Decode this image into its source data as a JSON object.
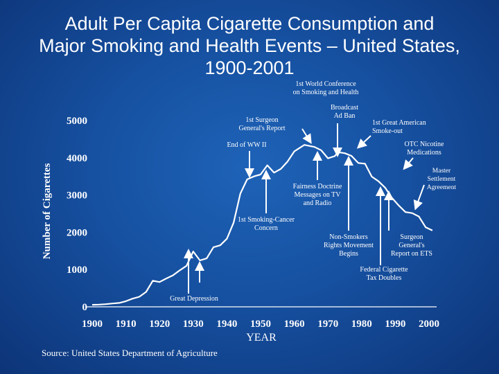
{
  "title_lines": [
    "Adult Per Capita Cigarette Consumption and",
    "Major Smoking and Health Events – United States,",
    "1900-2001"
  ],
  "source": "Source: United States Department of Agriculture",
  "colors": {
    "background": "#1650a0",
    "text": "#ffffff",
    "curve": "#ffffff",
    "arrow": "#ffffff"
  },
  "chart_data": {
    "type": "line",
    "title": "Adult Per Capita Cigarette Consumption and Major Smoking and Health Events – United States, 1900-2001",
    "xlabel": "YEAR",
    "ylabel": "Number of Cigarettes",
    "xlim": [
      1900,
      2000
    ],
    "ylim": [
      0,
      5000
    ],
    "x_ticks": [
      1900,
      1910,
      1920,
      1930,
      1940,
      1950,
      1960,
      1970,
      1980,
      1990,
      2000
    ],
    "y_ticks": [
      0,
      1000,
      2000,
      3000,
      4000,
      5000
    ],
    "grid": false,
    "series": [
      {
        "points": [
          [
            1900,
            54
          ],
          [
            1902,
            60
          ],
          [
            1904,
            70
          ],
          [
            1906,
            90
          ],
          [
            1908,
            105
          ],
          [
            1910,
            151
          ],
          [
            1912,
            220
          ],
          [
            1914,
            270
          ],
          [
            1916,
            400
          ],
          [
            1918,
            700
          ],
          [
            1920,
            665
          ],
          [
            1922,
            760
          ],
          [
            1924,
            845
          ],
          [
            1926,
            980
          ],
          [
            1928,
            1100
          ],
          [
            1930,
            1485
          ],
          [
            1932,
            1245
          ],
          [
            1934,
            1300
          ],
          [
            1936,
            1600
          ],
          [
            1938,
            1650
          ],
          [
            1940,
            1828
          ],
          [
            1942,
            2260
          ],
          [
            1944,
            3039
          ],
          [
            1946,
            3420
          ],
          [
            1948,
            3500
          ],
          [
            1950,
            3552
          ],
          [
            1952,
            3800
          ],
          [
            1954,
            3600
          ],
          [
            1956,
            3700
          ],
          [
            1958,
            3900
          ],
          [
            1960,
            4171
          ],
          [
            1963,
            4345
          ],
          [
            1966,
            4290
          ],
          [
            1968,
            4200
          ],
          [
            1970,
            3985
          ],
          [
            1972,
            4043
          ],
          [
            1973,
            4148
          ],
          [
            1975,
            4123
          ],
          [
            1977,
            4051
          ],
          [
            1979,
            3861
          ],
          [
            1981,
            3840
          ],
          [
            1983,
            3494
          ],
          [
            1985,
            3370
          ],
          [
            1987,
            3196
          ],
          [
            1989,
            2926
          ],
          [
            1991,
            2720
          ],
          [
            1993,
            2543
          ],
          [
            1995,
            2515
          ],
          [
            1997,
            2423
          ],
          [
            1999,
            2136
          ],
          [
            2001,
            2051
          ]
        ]
      }
    ],
    "annotations": [
      {
        "label_lines": [
          "1st World Conference",
          "on Smoking and Health"
        ],
        "year": 1967
      },
      {
        "label_lines": [
          "Broadcast",
          "Ad Ban"
        ],
        "year": 1971
      },
      {
        "label_lines": [
          "1st Surgeon",
          "General's Report"
        ],
        "year": 1964
      },
      {
        "label_lines": [
          "1st Great American",
          "Smoke-out"
        ],
        "year": 1976
      },
      {
        "label_lines": [
          "End of WW II"
        ],
        "year": 1945
      },
      {
        "label_lines": [
          "OTC Nicotine",
          "Medications"
        ],
        "year": 1996
      },
      {
        "label_lines": [
          "Master",
          "Settlement",
          "Agreement"
        ],
        "year": 1998
      },
      {
        "label_lines": [
          "Fairness Doctrine",
          "Messages on TV",
          "and Radio"
        ],
        "year": 1968
      },
      {
        "label_lines": [
          "1st Smoking-Cancer",
          "Concern"
        ],
        "year": 1952
      },
      {
        "label_lines": [
          "Non-Smokers",
          "Rights Movement",
          "Begins"
        ],
        "year": 1986
      },
      {
        "label_lines": [
          "Surgeon",
          "General's",
          "Report on ETS"
        ],
        "year": 1993
      },
      {
        "label_lines": [
          "Federal Cigarette",
          "Tax Doubles"
        ],
        "year": 1983
      },
      {
        "label_lines": [
          "Great Depression"
        ],
        "year": 1931
      }
    ]
  }
}
